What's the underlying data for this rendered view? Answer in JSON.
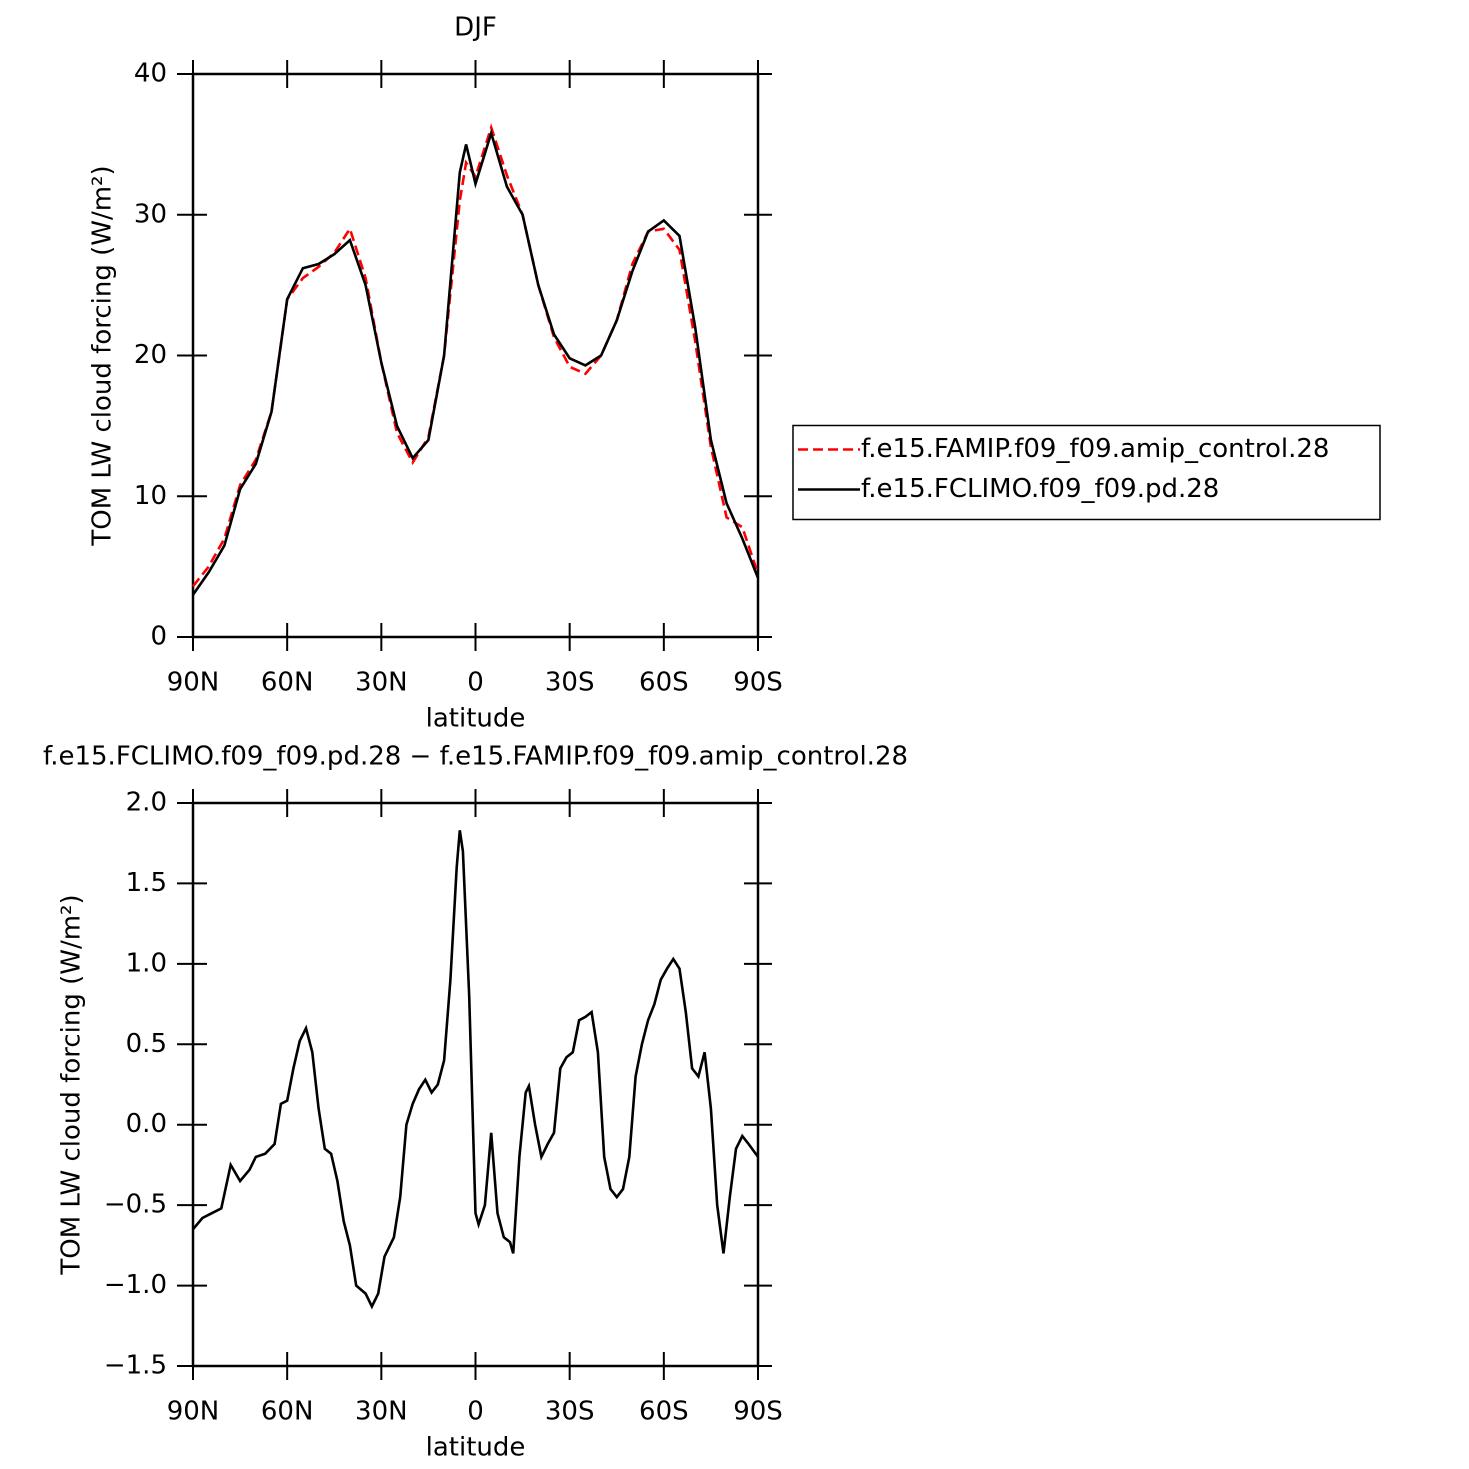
{
  "chart_data": [
    {
      "type": "line",
      "title": "DJF",
      "xlabel": "latitude",
      "ylabel": "TOM LW cloud forcing (W/m²)",
      "x": [
        90,
        85,
        80,
        75,
        70,
        65,
        60,
        55,
        50,
        45,
        40,
        35,
        30,
        25,
        20,
        15,
        10,
        5,
        3,
        0,
        -5,
        -10,
        -15,
        -20,
        -25,
        -30,
        -35,
        -40,
        -45,
        -50,
        -55,
        -60,
        -65,
        -70,
        -75,
        -80,
        -85,
        -90
      ],
      "series": [
        {
          "name": "f.e15.FAMIP.f09_f09.amip_control.28",
          "color": "#ff0000",
          "linestyle": "dashed",
          "values": [
            3.6,
            5.0,
            7.0,
            10.8,
            12.6,
            16,
            24,
            25.5,
            26.3,
            27.3,
            29.0,
            25.5,
            19.5,
            14.5,
            12.4,
            14.2,
            20,
            31,
            33.7,
            32.7,
            36.2,
            32.8,
            30,
            25,
            21.3,
            19.2,
            18.7,
            20,
            22.5,
            26.5,
            28.8,
            29,
            27.5,
            21,
            13.5,
            8.5,
            7.8,
            4.5
          ]
        },
        {
          "name": "f.e15.FCLIMO.f09_f09.pd.28",
          "color": "#000000",
          "linestyle": "solid",
          "values": [
            3.0,
            4.6,
            6.5,
            10.5,
            12.3,
            16,
            24,
            26.2,
            26.5,
            27.2,
            28.2,
            25,
            19.5,
            15,
            12.7,
            14,
            20,
            33,
            35,
            32.2,
            35.8,
            32,
            30,
            25,
            21.5,
            19.8,
            19.3,
            20,
            22.5,
            26,
            28.8,
            29.6,
            28.5,
            22,
            14,
            9.5,
            7.0,
            4.2
          ]
        }
      ],
      "xlim": [
        90,
        -90
      ],
      "xticks": [
        {
          "value": 90,
          "label": "90N"
        },
        {
          "value": 60,
          "label": "60N"
        },
        {
          "value": 30,
          "label": "30N"
        },
        0,
        {
          "value": -30,
          "label": "30S"
        },
        {
          "value": -60,
          "label": "60S"
        },
        {
          "value": -90,
          "label": "90S"
        }
      ],
      "ylim": [
        0,
        40
      ],
      "yticks": [
        0,
        10,
        20,
        30,
        40
      ],
      "legend": "right"
    },
    {
      "type": "line",
      "title": "f.e15.FCLIMO.f09_f09.pd.28 − f.e15.FAMIP.f09_f09.amip_control.28",
      "xlabel": "latitude",
      "ylabel": "TOM LW cloud forcing (W/m²)",
      "x": [
        90,
        87,
        84,
        81,
        78,
        75,
        72,
        70,
        67,
        64,
        62,
        60,
        58,
        56,
        54,
        52,
        50,
        48,
        46,
        44,
        42,
        40,
        38,
        35,
        33,
        31,
        29,
        26,
        24,
        22,
        20,
        18,
        16,
        14,
        12,
        10,
        8,
        6,
        5,
        4,
        2,
        0,
        -1,
        -3,
        -5,
        -7,
        -9,
        -11,
        -12,
        -14,
        -16,
        -17,
        -19,
        -21,
        -23,
        -25,
        -27,
        -29,
        -31,
        -33,
        -35,
        -37,
        -39,
        -41,
        -43,
        -45,
        -47,
        -49,
        -51,
        -53,
        -55,
        -57,
        -59,
        -61,
        -63,
        -65,
        -67,
        -69,
        -71,
        -73,
        -75,
        -77,
        -79,
        -81,
        -83,
        -85,
        -87,
        -90
      ],
      "series": [
        {
          "color": "#000000",
          "linestyle": "solid",
          "values": [
            -0.65,
            -0.58,
            -0.55,
            -0.52,
            -0.25,
            -0.35,
            -0.28,
            -0.2,
            -0.18,
            -0.12,
            0.13,
            0.15,
            0.35,
            0.52,
            0.6,
            0.45,
            0.1,
            -0.15,
            -0.18,
            -0.35,
            -0.6,
            -0.75,
            -1.0,
            -1.05,
            -1.13,
            -1.05,
            -0.82,
            -0.7,
            -0.45,
            0,
            0.13,
            0.22,
            0.28,
            0.2,
            0.25,
            0.4,
            0.9,
            1.6,
            1.83,
            1.7,
            0.8,
            -0.55,
            -0.62,
            -0.5,
            -0.05,
            -0.55,
            -0.7,
            -0.73,
            -0.8,
            -0.2,
            0.2,
            0.24,
            0,
            -0.2,
            -0.12,
            -0.05,
            0.35,
            0.42,
            0.45,
            0.65,
            0.67,
            0.7,
            0.45,
            -0.2,
            -0.4,
            -0.45,
            -0.4,
            -0.2,
            0.3,
            0.5,
            0.65,
            0.75,
            0.9,
            0.97,
            1.03,
            0.97,
            0.7,
            0.35,
            0.3,
            0.45,
            0.1,
            -0.5,
            -0.8,
            -0.45,
            -0.15,
            -0.07,
            -0.12,
            -0.2
          ]
        }
      ],
      "xlim": [
        90,
        -90
      ],
      "xticks": [
        {
          "value": 90,
          "label": "90N"
        },
        {
          "value": 60,
          "label": "60N"
        },
        {
          "value": 30,
          "label": "30N"
        },
        0,
        {
          "value": -30,
          "label": "30S"
        },
        {
          "value": -60,
          "label": "60S"
        },
        {
          "value": -90,
          "label": "90S"
        }
      ],
      "ylim": [
        -1.5,
        2.0
      ],
      "yticks": [
        {
          "value": -1.5,
          "label": "−1.5"
        },
        {
          "value": -1,
          "label": "−1.0"
        },
        {
          "value": -0.5,
          "label": "−0.5"
        },
        {
          "value": 0,
          "label": "0.0"
        },
        0.5,
        {
          "value": 1,
          "label": "1.0"
        },
        1.5,
        {
          "value": 2,
          "label": "2.0"
        }
      ]
    }
  ]
}
